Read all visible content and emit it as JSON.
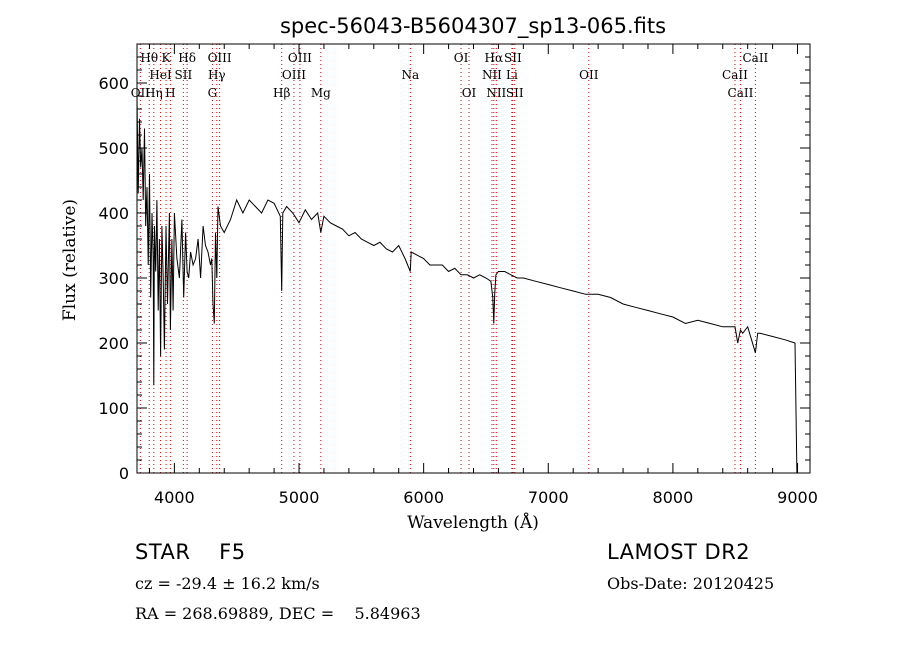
{
  "chart_data": {
    "type": "line",
    "title": "spec-56043-B5604307_sp13-065.fits",
    "xlabel": "Wavelength (Å)",
    "ylabel": "Flux (relative)",
    "xlim": [
      3700,
      9100
    ],
    "ylim": [
      0,
      660
    ],
    "xticks": [
      4000,
      5000,
      6000,
      7000,
      8000,
      9000
    ],
    "yticks": [
      0,
      100,
      200,
      300,
      400,
      500,
      600
    ],
    "grid": false,
    "series": [
      {
        "x": [
          3700,
          3710,
          3720,
          3730,
          3740,
          3750,
          3760,
          3770,
          3780,
          3790,
          3800,
          3810,
          3820,
          3830,
          3835,
          3840,
          3850,
          3860,
          3870,
          3880,
          3889,
          3900,
          3910,
          3920,
          3933,
          3945,
          3960,
          3968,
          3980,
          3990,
          4000,
          4020,
          4040,
          4060,
          4075,
          4090,
          4102,
          4115,
          4130,
          4150,
          4170,
          4190,
          4210,
          4230,
          4250,
          4270,
          4290,
          4300,
          4310,
          4320,
          4330,
          4340,
          4350,
          4370,
          4400,
          4450,
          4500,
          4550,
          4600,
          4650,
          4700,
          4750,
          4800,
          4850,
          4861,
          4870,
          4900,
          4950,
          5000,
          5050,
          5100,
          5150,
          5175,
          5200,
          5250,
          5300,
          5350,
          5400,
          5450,
          5500,
          5550,
          5600,
          5650,
          5700,
          5750,
          5800,
          5850,
          5893,
          5900,
          5950,
          6000,
          6050,
          6100,
          6150,
          6200,
          6250,
          6300,
          6350,
          6400,
          6450,
          6500,
          6540,
          6555,
          6563,
          6570,
          6580,
          6600,
          6650,
          6700,
          6750,
          6800,
          6900,
          7000,
          7100,
          7200,
          7300,
          7400,
          7500,
          7600,
          7700,
          7800,
          7900,
          8000,
          8100,
          8200,
          8300,
          8400,
          8498,
          8520,
          8542,
          8560,
          8600,
          8662,
          8680,
          8700,
          8800,
          8900,
          8980,
          8995,
          9000
        ],
        "y": [
          580,
          430,
          545,
          470,
          500,
          420,
          530,
          380,
          440,
          320,
          460,
          270,
          400,
          330,
          135,
          380,
          310,
          420,
          250,
          360,
          180,
          380,
          300,
          190,
          380,
          260,
          400,
          220,
          360,
          250,
          400,
          330,
          300,
          390,
          270,
          370,
          310,
          300,
          340,
          320,
          330,
          360,
          300,
          380,
          350,
          340,
          320,
          330,
          260,
          230,
          370,
          300,
          410,
          380,
          370,
          390,
          420,
          400,
          420,
          410,
          400,
          420,
          415,
          395,
          280,
          400,
          410,
          400,
          385,
          405,
          390,
          400,
          370,
          395,
          385,
          380,
          375,
          365,
          370,
          360,
          355,
          350,
          355,
          345,
          340,
          350,
          330,
          310,
          340,
          335,
          330,
          320,
          320,
          320,
          310,
          315,
          305,
          305,
          300,
          305,
          300,
          295,
          270,
          230,
          275,
          305,
          310,
          310,
          305,
          300,
          300,
          295,
          290,
          285,
          280,
          275,
          275,
          270,
          260,
          255,
          250,
          245,
          240,
          230,
          235,
          230,
          225,
          225,
          200,
          220,
          215,
          225,
          185,
          215,
          215,
          210,
          205,
          200,
          0,
          0
        ]
      }
    ],
    "line_annotations": [
      {
        "label": "Hθ",
        "x": 3798,
        "row": 1
      },
      {
        "label": "OII",
        "x": 3727,
        "row": 3
      },
      {
        "label": "Hη",
        "x": 3835,
        "row": 3
      },
      {
        "label": "HeI",
        "x": 3889,
        "row": 2
      },
      {
        "label": "K",
        "x": 3933,
        "row": 1
      },
      {
        "label": "H",
        "x": 3968,
        "row": 3
      },
      {
        "label": "SII",
        "x": 4072,
        "row": 2
      },
      {
        "label": "Hδ",
        "x": 4102,
        "row": 1
      },
      {
        "label": "OIII",
        "x": 4363,
        "row": 1
      },
      {
        "label": "Hγ",
        "x": 4340,
        "row": 2
      },
      {
        "label": "G",
        "x": 4305,
        "row": 3
      },
      {
        "label": "Hβ",
        "x": 4861,
        "row": 3
      },
      {
        "label": "OIII",
        "x": 4959,
        "row": 2
      },
      {
        "label": "OIII",
        "x": 5007,
        "row": 1
      },
      {
        "label": "Mg",
        "x": 5175,
        "row": 3
      },
      {
        "label": "Na",
        "x": 5893,
        "row": 2
      },
      {
        "label": "OI",
        "x": 6300,
        "row": 1
      },
      {
        "label": "OI",
        "x": 6364,
        "row": 3
      },
      {
        "label": "Hα",
        "x": 6563,
        "row": 1
      },
      {
        "label": "NII",
        "x": 6548,
        "row": 2
      },
      {
        "label": "NII",
        "x": 6583,
        "row": 3
      },
      {
        "label": "SII",
        "x": 6716,
        "row": 1
      },
      {
        "label": "Li",
        "x": 6708,
        "row": 2
      },
      {
        "label": "SII",
        "x": 6731,
        "row": 3
      },
      {
        "label": "OII",
        "x": 7325,
        "row": 2
      },
      {
        "label": "CaII",
        "x": 8662,
        "row": 1
      },
      {
        "label": "CaII",
        "x": 8498,
        "row": 2
      },
      {
        "label": "CaII",
        "x": 8542,
        "row": 3
      }
    ]
  },
  "info": {
    "object_class": "STAR    F5",
    "survey": "LAMOST DR2",
    "cz": "cz = -29.4 ± 16.2 km/s",
    "obs_date": "Obs-Date: 20120425",
    "radec": "RA = 268.69889, DEC =    5.84963"
  },
  "colors": {
    "spectrum": "#000000",
    "marker_lines": "#d40000",
    "axes": "#000000"
  }
}
